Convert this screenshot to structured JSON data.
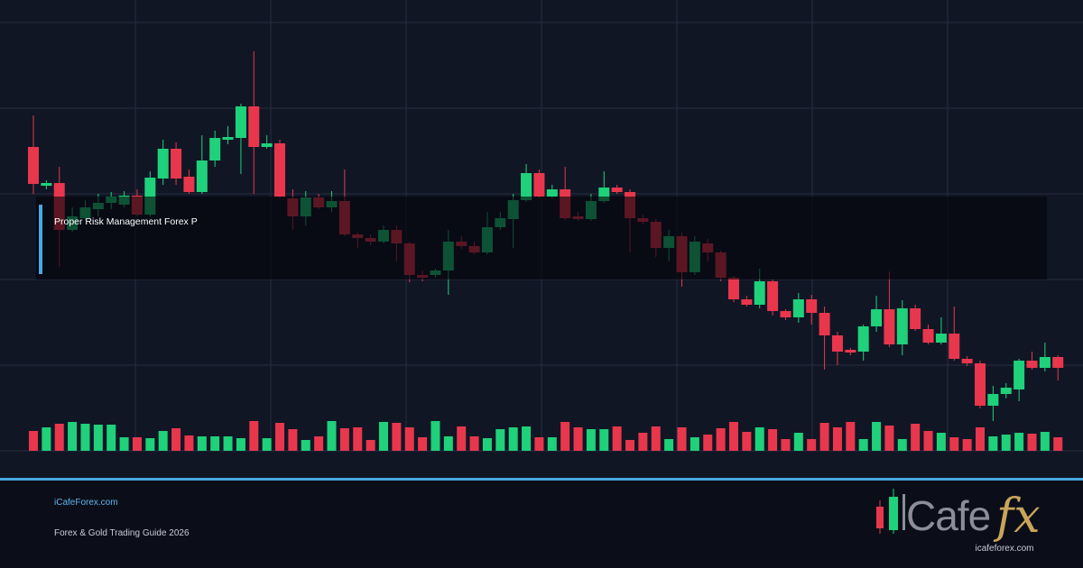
{
  "chart_data": {
    "type": "candlestick",
    "open": [
      337,
      294,
      297,
      245,
      258,
      268,
      275,
      273,
      283,
      262,
      302,
      335,
      304,
      287,
      322,
      345,
      347,
      382,
      337,
      341,
      280,
      260,
      281,
      270,
      277,
      240,
      236,
      232,
      245,
      230,
      195,
      195,
      200,
      232,
      227,
      220,
      248,
      257,
      278,
      308,
      282,
      290,
      260,
      257,
      277,
      292,
      287,
      258,
      254,
      225,
      238,
      198,
      230,
      220,
      192,
      168,
      162,
      188,
      155,
      148,
      168,
      153,
      128,
      112,
      110,
      138,
      157,
      118,
      158,
      135,
      120,
      130,
      102,
      97,
      50,
      63,
      68,
      100,
      92,
      104
    ],
    "high": [
      372,
      300,
      315,
      270,
      278,
      285,
      287,
      288,
      290,
      310,
      345,
      342,
      312,
      350,
      355,
      360,
      385,
      443,
      350,
      345,
      290,
      288,
      285,
      288,
      312,
      242,
      240,
      250,
      250,
      232,
      200,
      202,
      245,
      238,
      232,
      265,
      265,
      285,
      318,
      312,
      295,
      315,
      265,
      285,
      310,
      295,
      290,
      262,
      257,
      245,
      242,
      238,
      235,
      222,
      194,
      172,
      202,
      190,
      157,
      175,
      173,
      160,
      132,
      114,
      140,
      172,
      199,
      167,
      162,
      140,
      148,
      160,
      105,
      100,
      72,
      75,
      102,
      110,
      120,
      106
    ],
    "low": [
      285,
      290,
      204,
      243,
      255,
      260,
      268,
      270,
      260,
      260,
      295,
      295,
      285,
      285,
      315,
      340,
      307,
      285,
      335,
      280,
      245,
      250,
      268,
      265,
      238,
      225,
      228,
      230,
      210,
      187,
      188,
      192,
      173,
      224,
      218,
      218,
      245,
      225,
      276,
      280,
      280,
      256,
      255,
      255,
      275,
      285,
      220,
      252,
      215,
      210,
      182,
      195,
      210,
      188,
      165,
      160,
      158,
      150,
      145,
      142,
      140,
      90,
      95,
      106,
      100,
      132,
      115,
      106,
      133,
      118,
      118,
      100,
      94,
      47,
      33,
      58,
      55,
      90,
      88,
      78
    ],
    "close": [
      296,
      297,
      245,
      260,
      270,
      275,
      282,
      283,
      262,
      303,
      335,
      302,
      287,
      322,
      347,
      348,
      382,
      337,
      341,
      282,
      260,
      281,
      270,
      277,
      240,
      236,
      232,
      245,
      230,
      195,
      192,
      200,
      232,
      227,
      220,
      248,
      258,
      278,
      308,
      282,
      290,
      258,
      257,
      277,
      292,
      287,
      258,
      254,
      225,
      238,
      198,
      232,
      220,
      192,
      168,
      162,
      188,
      155,
      148,
      168,
      153,
      128,
      110,
      109,
      138,
      157,
      118,
      158,
      135,
      120,
      130,
      102,
      97,
      50,
      63,
      70,
      100,
      92,
      104,
      92
    ],
    "volume": [
      22,
      26,
      30,
      32,
      30,
      29,
      29,
      15,
      15,
      14,
      22,
      25,
      17,
      16,
      16,
      16,
      14,
      33,
      14,
      31,
      24,
      12,
      16,
      33,
      25,
      26,
      12,
      32,
      31,
      26,
      15,
      33,
      16,
      27,
      16,
      14,
      24,
      26,
      27,
      15,
      15,
      32,
      26,
      24,
      24,
      27,
      12,
      20,
      27,
      13,
      26,
      15,
      18,
      25,
      32,
      21,
      26,
      24,
      13,
      20,
      13,
      31,
      26,
      32,
      13,
      32,
      28,
      13,
      30,
      22,
      20,
      15,
      13,
      26,
      16,
      18,
      20,
      19,
      21,
      15
    ],
    "ylim": [
      0,
      475
    ],
    "volume_lim": [
      0,
      100
    ],
    "up_color": "#1fd17a",
    "down_color": "#e8374d"
  },
  "overlay": {
    "title": "Proper Risk Management Forex P"
  },
  "footer": {
    "site": "iCafeForex.com",
    "subtitle": "Forex & Gold Trading Guide 2026"
  },
  "logo": {
    "brand": "Cafe",
    "fx": "fx",
    "url": "icafeforex.com"
  }
}
